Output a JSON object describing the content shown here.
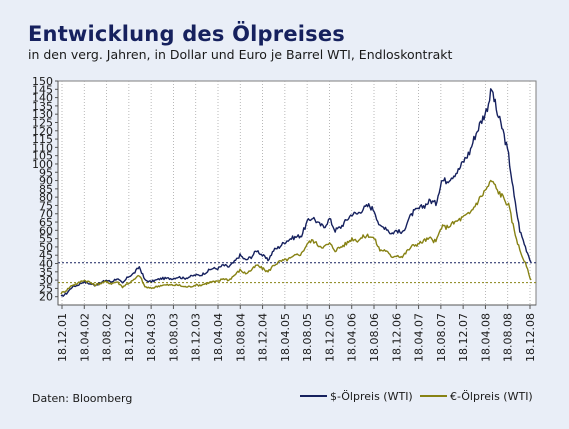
{
  "header": {
    "title": "Entwicklung des Ölpreises",
    "subtitle": "in den verg. Jahren, in Dollar und Euro je Barrel WTI, Endloskontrakt"
  },
  "footer": {
    "source": "Daten: Bloomberg"
  },
  "colors": {
    "usd": "#16215e",
    "eur": "#878214",
    "background": "#e9eef7",
    "plot_bg": "#ffffff",
    "grid": "#a8a8a8"
  },
  "chart_data": {
    "type": "line",
    "title": "Entwicklung des Ölpreises",
    "subtitle": "in den verg. Jahren, in Dollar und Euro je Barrel WTI, Endloskontrakt",
    "xlabel": "",
    "ylabel": "",
    "ylim": [
      15,
      150
    ],
    "y_ticks": [
      20,
      25,
      30,
      35,
      40,
      45,
      50,
      55,
      60,
      65,
      70,
      75,
      80,
      85,
      90,
      95,
      100,
      105,
      110,
      115,
      120,
      125,
      130,
      135,
      140,
      145,
      150
    ],
    "x_ticks": [
      "18.12.01",
      "18.04.02",
      "18.08.02",
      "18.12.02",
      "18.04.03",
      "18.08.03",
      "18.12.03",
      "18.04.04",
      "18.08.04",
      "18.12.04",
      "18.04.05",
      "18.08.05",
      "18.12.05",
      "18.04.06",
      "18.08.06",
      "18.12.06",
      "18.04.07",
      "18.08.07",
      "18.12.07",
      "18.04.08",
      "18.08.08",
      "18.12.08"
    ],
    "grid": "vertical dotted",
    "legend_position": "bottom-right",
    "reference_lines": [
      {
        "series": "$-Ölpreis (WTI)",
        "value": 40.5
      },
      {
        "series": "€-Ölpreis (WTI)",
        "value": 28.5
      }
    ],
    "series": [
      {
        "name": "$-Ölpreis (WTI)",
        "color": "#16215e",
        "values": [
          20,
          22,
          26,
          27,
          29,
          28,
          27,
          28,
          30,
          29,
          31,
          28,
          32,
          34,
          38,
          30,
          29,
          30,
          31,
          31,
          31,
          32,
          31,
          32,
          33,
          33,
          35,
          37,
          37,
          39,
          38,
          41,
          45,
          42,
          44,
          48,
          45,
          42,
          48,
          50,
          53,
          55,
          56,
          57,
          65,
          68,
          64,
          62,
          67,
          60,
          62,
          66,
          70,
          70,
          73,
          75,
          72,
          62,
          62,
          58,
          60,
          58,
          66,
          71,
          73,
          75,
          78,
          76,
          90,
          90,
          93,
          96,
          102,
          107,
          117,
          125,
          132,
          145,
          130,
          120,
          105,
          80,
          60,
          50,
          41
        ]
      },
      {
        "name": "€-Ölpreis (WTI)",
        "color": "#878214",
        "values": [
          22,
          24,
          27,
          28,
          30,
          29,
          27,
          28,
          29,
          28,
          29,
          26,
          28,
          30,
          33,
          26,
          25,
          26,
          27,
          27,
          27,
          27,
          26,
          26,
          27,
          27,
          28,
          29,
          29,
          31,
          30,
          33,
          36,
          34,
          36,
          39,
          37,
          35,
          39,
          41,
          42,
          43,
          45,
          46,
          52,
          54,
          51,
          50,
          52,
          48,
          50,
          52,
          55,
          54,
          56,
          57,
          55,
          48,
          48,
          44,
          45,
          44,
          48,
          51,
          52,
          54,
          55,
          53,
          62,
          62,
          64,
          66,
          68,
          70,
          75,
          80,
          85,
          90,
          84,
          80,
          75,
          60,
          48,
          40,
          30
        ]
      }
    ]
  }
}
